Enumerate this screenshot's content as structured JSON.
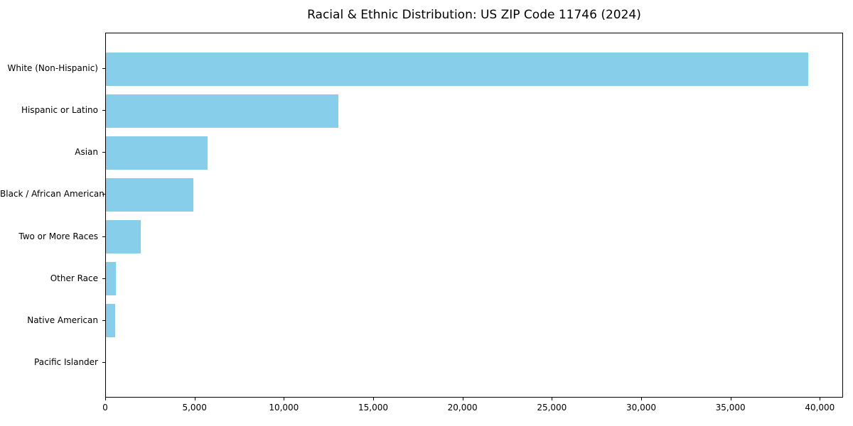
{
  "chart_data": {
    "type": "bar",
    "orientation": "horizontal",
    "title": "Racial & Ethnic Distribution: US ZIP Code 11746 (2024)",
    "categories": [
      "White (Non-Hispanic)",
      "Hispanic or Latino",
      "Asian",
      "Black / African American",
      "Two or More Races",
      "Other Race",
      "Native American",
      "Pacific Islander"
    ],
    "values": [
      39300,
      13000,
      5700,
      4900,
      1960,
      550,
      500,
      0
    ],
    "xlabel": "",
    "ylabel": "",
    "xlim": [
      0,
      41300
    ],
    "x_ticks": [
      0,
      5000,
      10000,
      15000,
      20000,
      25000,
      30000,
      35000,
      40000
    ],
    "x_tick_labels": [
      "0",
      "5,000",
      "10,000",
      "15,000",
      "20,000",
      "25,000",
      "30,000",
      "35,000",
      "40,000"
    ],
    "bar_color": "#87CEEB",
    "frame_color": "#000000",
    "grid": false,
    "legend": null,
    "value_axis": "x",
    "category_order": "descending-top-to-bottom"
  }
}
